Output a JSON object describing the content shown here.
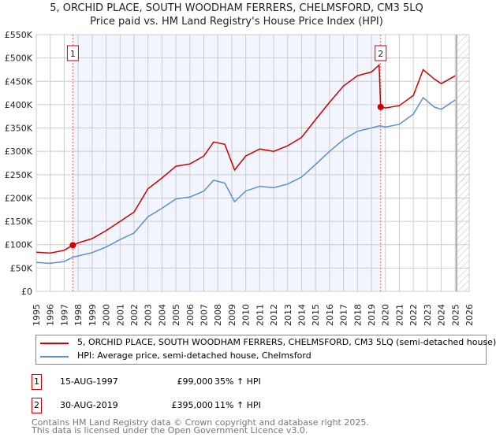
{
  "chart_data": {
    "type": "line",
    "title": "5, ORCHID PLACE, SOUTH WOODHAM FERRERS, CHELMSFORD, CM3 5LQ",
    "subtitle": "Price paid vs. HM Land Registry's House Price Index (HPI)",
    "xlim": [
      1995,
      2026
    ],
    "ylim": [
      0,
      550000
    ],
    "x_ticks": [
      "1995",
      "1996",
      "1997",
      "1998",
      "1999",
      "2000",
      "2001",
      "2002",
      "2003",
      "2004",
      "2005",
      "2006",
      "2007",
      "2008",
      "2009",
      "2010",
      "2011",
      "2012",
      "2013",
      "2014",
      "2015",
      "2016",
      "2017",
      "2018",
      "2019",
      "2020",
      "2021",
      "2022",
      "2023",
      "2024",
      "2025",
      "2026"
    ],
    "y_ticks": [
      {
        "v": 0,
        "label": "£0"
      },
      {
        "v": 50000,
        "label": "£50K"
      },
      {
        "v": 100000,
        "label": "£100K"
      },
      {
        "v": 150000,
        "label": "£150K"
      },
      {
        "v": 200000,
        "label": "£200K"
      },
      {
        "v": 250000,
        "label": "£250K"
      },
      {
        "v": 300000,
        "label": "£300K"
      },
      {
        "v": 350000,
        "label": "£350K"
      },
      {
        "v": 400000,
        "label": "£400K"
      },
      {
        "v": 450000,
        "label": "£450K"
      },
      {
        "v": 500000,
        "label": "£500K"
      },
      {
        "v": 550000,
        "label": "£550K"
      }
    ],
    "grid": true,
    "shaded_range": [
      1997.62,
      2019.66
    ],
    "forecast_hatch_from": 2025.1,
    "series": [
      {
        "name": "5, ORCHID PLACE, SOUTH WOODHAM FERRERS, CHELMSFORD, CM3 5LQ (semi-detached house)",
        "color": "#cc0000",
        "x": [
          1995,
          1996,
          1997,
          1997.62,
          1998,
          1999,
          2000,
          2001,
          2002,
          2003,
          2004,
          2005,
          2006,
          2007,
          2007.7,
          2008.5,
          2009.2,
          2010,
          2011,
          2012,
          2013,
          2014,
          2015,
          2016,
          2017,
          2018,
          2019,
          2019.55,
          2019.66,
          2020,
          2021,
          2022,
          2022.7,
          2023.5,
          2024,
          2025
        ],
        "y": [
          84000,
          82000,
          88000,
          99000,
          104000,
          113000,
          130000,
          150000,
          170000,
          220000,
          243000,
          268000,
          273000,
          290000,
          320000,
          315000,
          260000,
          290000,
          305000,
          300000,
          312000,
          330000,
          368000,
          405000,
          440000,
          462000,
          470000,
          485000,
          395000,
          393000,
          398000,
          420000,
          475000,
          455000,
          445000,
          462000
        ]
      },
      {
        "name": "HPI: Average price, semi-detached house, Chelmsford",
        "color": "#5b8fd0",
        "x": [
          1995,
          1996,
          1997,
          1997.62,
          1998,
          1999,
          2000,
          2001,
          2002,
          2003,
          2004,
          2005,
          2006,
          2007,
          2007.7,
          2008.5,
          2009.2,
          2010,
          2011,
          2012,
          2013,
          2014,
          2015,
          2016,
          2017,
          2018,
          2019,
          2019.6,
          2020,
          2021,
          2022,
          2022.7,
          2023.5,
          2024,
          2025
        ],
        "y": [
          62000,
          60000,
          64000,
          73000,
          76000,
          83000,
          95000,
          111000,
          125000,
          160000,
          178000,
          198000,
          202000,
          215000,
          238000,
          232000,
          192000,
          215000,
          225000,
          222000,
          230000,
          245000,
          272000,
          300000,
          325000,
          343000,
          350000,
          355000,
          352000,
          358000,
          380000,
          415000,
          395000,
          390000,
          410000
        ]
      }
    ],
    "sales": [
      {
        "id": "1",
        "x": 1997.62,
        "y": 99000
      },
      {
        "id": "2",
        "x": 2019.66,
        "y": 395000
      }
    ],
    "legend_position": "below"
  },
  "title_line1": "5, ORCHID PLACE, SOUTH WOODHAM FERRERS, CHELMSFORD, CM3 5LQ",
  "title_line2": "Price paid vs. HM Land Registry's House Price Index (HPI)",
  "legend": [
    "5, ORCHID PLACE, SOUTH WOODHAM FERRERS, CHELMSFORD, CM3 5LQ (semi-detached house)",
    "HPI: Average price, semi-detached house, Chelmsford"
  ],
  "transactions": [
    {
      "id": "1",
      "date": "15-AUG-1997",
      "price": "£99,000",
      "hpi": "35% ↑ HPI"
    },
    {
      "id": "2",
      "date": "30-AUG-2019",
      "price": "£395,000",
      "hpi": "11% ↑ HPI"
    }
  ],
  "footer_line1": "Contains HM Land Registry data © Crown copyright and database right 2025.",
  "footer_line2": "This data is licensed under the Open Government Licence v3.0."
}
